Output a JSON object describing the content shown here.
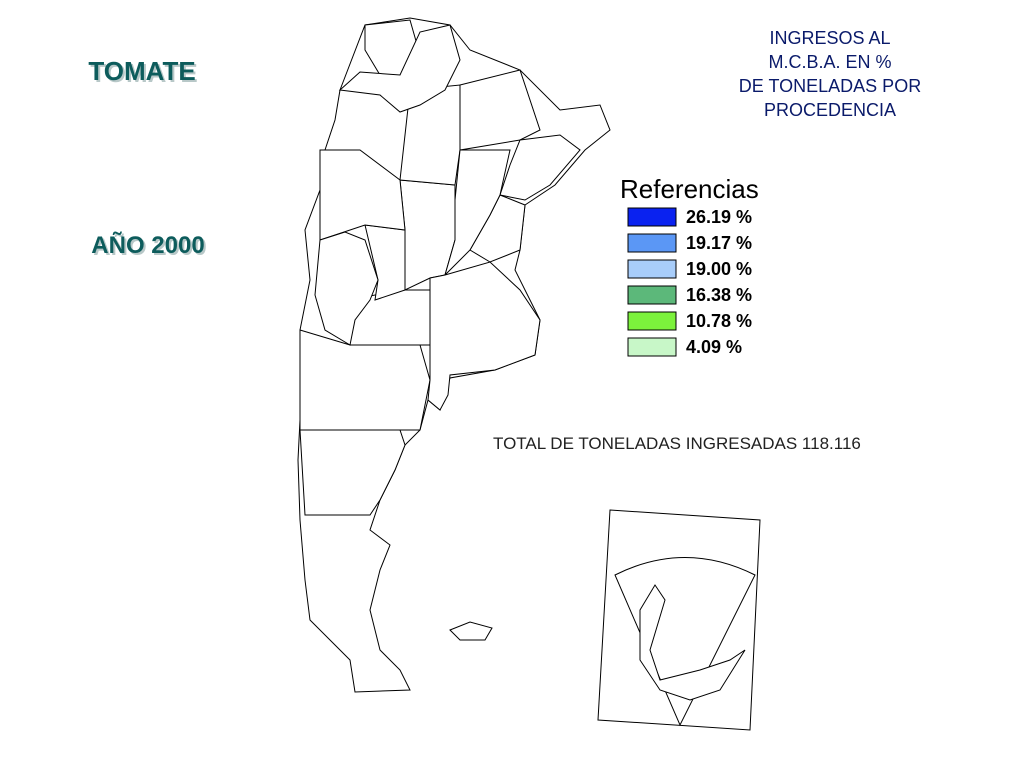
{
  "header": {
    "product": "TOMATE",
    "year": "AÑO 2000",
    "title_lines": [
      "INGRESOS AL",
      "M.C.B.A. EN %",
      "DE TONELADAS POR",
      "PROCEDENCIA"
    ]
  },
  "legend": {
    "title": "Referencias",
    "items": [
      {
        "label": "26.19 %",
        "color": "#0a22f0"
      },
      {
        "label": "19.17 %",
        "color": "#5b97f5"
      },
      {
        "label": "19.00 %",
        "color": "#a8cdfa"
      },
      {
        "label": "16.38 %",
        "color": "#5cb87a"
      },
      {
        "label": "10.78 %",
        "color": "#7cf23c"
      },
      {
        "label": "4.09 %",
        "color": "#c8f7c8"
      }
    ]
  },
  "total": "TOTAL DE TONELADAS INGRESADAS 118.116"
}
